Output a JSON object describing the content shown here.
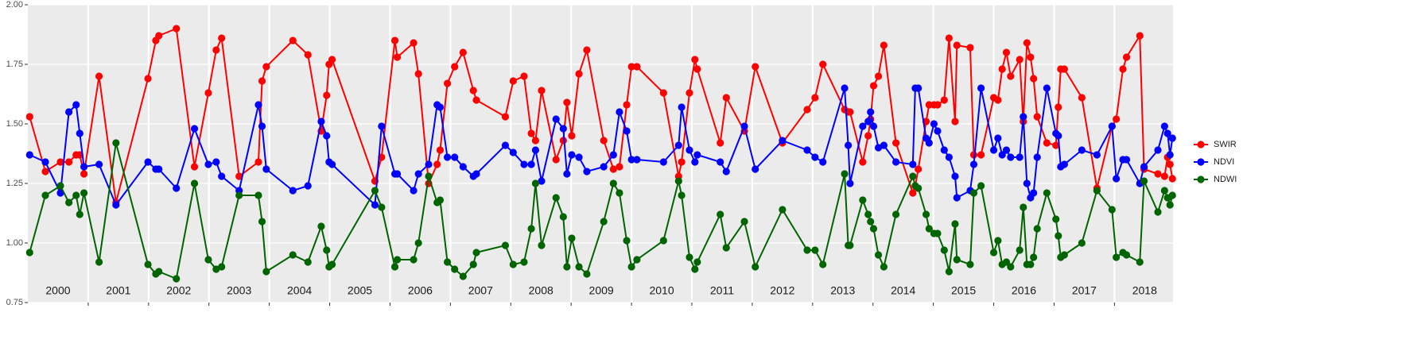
{
  "chart_data": {
    "type": "line",
    "x": [
      2000.03,
      2000.29,
      2000.54,
      2000.68,
      2000.8,
      2000.86,
      2000.93,
      2001.18,
      2001.46,
      2001.99,
      2002.12,
      2002.17,
      2002.46,
      2002.76,
      2002.99,
      2003.12,
      2003.21,
      2003.5,
      2003.82,
      2003.88,
      2003.95,
      2004.39,
      2004.64,
      2004.86,
      2004.95,
      2004.99,
      2005.04,
      2005.75,
      2005.86,
      2006.08,
      2006.12,
      2006.39,
      2006.47,
      2006.64,
      2006.78,
      2006.83,
      2006.95,
      2007.07,
      2007.21,
      2007.38,
      2007.43,
      2007.91,
      2008.04,
      2008.22,
      2008.34,
      2008.41,
      2008.51,
      2008.75,
      2008.87,
      2008.93,
      2009.01,
      2009.13,
      2009.26,
      2009.54,
      2009.7,
      2009.8,
      2009.92,
      2010.0,
      2010.09,
      2010.53,
      2010.78,
      2010.83,
      2010.96,
      2011.05,
      2011.09,
      2011.47,
      2011.57,
      2011.87,
      2012.05,
      2012.5,
      2012.91,
      2013.04,
      2013.17,
      2013.53,
      2013.59,
      2013.62,
      2013.83,
      2013.92,
      2013.96,
      2014.01,
      2014.09,
      2014.18,
      2014.38,
      2014.66,
      2014.7,
      2014.75,
      2014.88,
      2014.93,
      2015.01,
      2015.07,
      2015.18,
      2015.26,
      2015.36,
      2015.39,
      2015.61,
      2015.67,
      2015.79,
      2016.0,
      2016.07,
      2016.14,
      2016.21,
      2016.28,
      2016.43,
      2016.49,
      2016.55,
      2016.61,
      2016.66,
      2016.72,
      2016.88,
      2017.03,
      2017.07,
      2017.11,
      2017.17,
      2017.46,
      2017.71,
      2017.96,
      2018.03,
      2018.14,
      2018.2,
      2018.42,
      2018.49,
      2018.72,
      2018.83,
      2018.88,
      2018.92,
      2018.96
    ],
    "series": [
      {
        "name": "SWIR",
        "color": "#ff0000",
        "values": [
          1.53,
          1.3,
          1.34,
          1.34,
          1.37,
          1.37,
          1.29,
          1.7,
          1.17,
          1.69,
          1.85,
          1.87,
          1.9,
          1.32,
          1.63,
          1.81,
          1.86,
          1.28,
          1.34,
          1.68,
          1.74,
          1.85,
          1.79,
          1.47,
          1.62,
          1.75,
          1.77,
          1.26,
          1.36,
          1.85,
          1.78,
          1.84,
          1.71,
          1.25,
          1.33,
          1.39,
          1.67,
          1.74,
          1.8,
          1.64,
          1.6,
          1.53,
          1.68,
          1.7,
          1.46,
          1.43,
          1.64,
          1.35,
          1.43,
          1.59,
          1.45,
          1.71,
          1.81,
          1.43,
          1.31,
          1.32,
          1.58,
          1.74,
          1.74,
          1.63,
          1.28,
          1.34,
          1.63,
          1.77,
          1.73,
          1.42,
          1.61,
          1.47,
          1.74,
          1.42,
          1.56,
          1.61,
          1.75,
          1.56,
          1.55,
          1.55,
          1.34,
          1.45,
          1.52,
          1.66,
          1.7,
          1.83,
          1.42,
          1.21,
          1.24,
          1.31,
          1.51,
          1.58,
          1.58,
          1.58,
          1.6,
          1.86,
          1.51,
          1.83,
          1.82,
          1.37,
          1.37,
          1.61,
          1.6,
          1.73,
          1.8,
          1.7,
          1.77,
          1.51,
          1.84,
          1.78,
          1.69,
          1.53,
          1.42,
          1.41,
          1.57,
          1.73,
          1.73,
          1.61,
          1.23,
          1.49,
          1.52,
          1.73,
          1.78,
          1.87,
          1.31,
          1.29,
          1.28,
          1.36,
          1.33,
          1.27
        ]
      },
      {
        "name": "NDVI",
        "color": "#0000ff",
        "values": [
          1.37,
          1.34,
          1.21,
          1.55,
          1.58,
          1.46,
          1.32,
          1.33,
          1.16,
          1.34,
          1.31,
          1.31,
          1.23,
          1.48,
          1.33,
          1.34,
          1.28,
          1.22,
          1.58,
          1.49,
          1.31,
          1.22,
          1.24,
          1.51,
          1.45,
          1.34,
          1.33,
          1.16,
          1.49,
          1.29,
          1.29,
          1.22,
          1.29,
          1.33,
          1.58,
          1.57,
          1.36,
          1.36,
          1.32,
          1.28,
          1.29,
          1.41,
          1.38,
          1.33,
          1.33,
          1.39,
          1.26,
          1.52,
          1.48,
          1.29,
          1.37,
          1.36,
          1.3,
          1.32,
          1.37,
          1.55,
          1.47,
          1.35,
          1.35,
          1.34,
          1.41,
          1.57,
          1.39,
          1.34,
          1.37,
          1.34,
          1.3,
          1.49,
          1.31,
          1.43,
          1.39,
          1.36,
          1.34,
          1.65,
          1.41,
          1.25,
          1.49,
          1.51,
          1.55,
          1.49,
          1.4,
          1.41,
          1.34,
          1.33,
          1.65,
          1.65,
          1.44,
          1.42,
          1.5,
          1.47,
          1.39,
          1.36,
          1.28,
          1.19,
          1.22,
          1.33,
          1.65,
          1.39,
          1.44,
          1.37,
          1.39,
          1.36,
          1.36,
          1.53,
          1.25,
          1.19,
          1.21,
          1.36,
          1.65,
          1.46,
          1.45,
          1.32,
          1.33,
          1.39,
          1.37,
          1.49,
          1.27,
          1.35,
          1.35,
          1.25,
          1.32,
          1.39,
          1.49,
          1.46,
          1.37,
          1.44
        ]
      },
      {
        "name": "NDWI",
        "color": "#006400",
        "values": [
          0.96,
          1.2,
          1.24,
          1.17,
          1.2,
          1.12,
          1.21,
          0.92,
          1.42,
          0.91,
          0.87,
          0.88,
          0.85,
          1.25,
          0.93,
          0.89,
          0.9,
          1.2,
          1.2,
          1.09,
          0.88,
          0.95,
          0.92,
          1.07,
          0.97,
          0.9,
          0.91,
          1.22,
          1.15,
          0.9,
          0.93,
          0.93,
          1.0,
          1.28,
          1.17,
          1.18,
          0.92,
          0.89,
          0.86,
          0.91,
          0.96,
          0.99,
          0.91,
          0.92,
          1.06,
          1.25,
          0.99,
          1.19,
          1.11,
          0.9,
          1.02,
          0.9,
          0.87,
          1.09,
          1.25,
          1.21,
          1.01,
          0.9,
          0.93,
          1.01,
          1.26,
          1.2,
          0.94,
          0.89,
          0.92,
          1.12,
          0.98,
          1.09,
          0.9,
          1.14,
          0.97,
          0.97,
          0.91,
          1.29,
          0.99,
          0.99,
          1.18,
          1.12,
          1.09,
          1.06,
          0.95,
          0.9,
          1.12,
          1.28,
          1.24,
          1.23,
          1.12,
          1.06,
          1.04,
          1.04,
          0.97,
          0.88,
          1.08,
          0.93,
          0.91,
          1.21,
          1.24,
          0.96,
          1.01,
          0.91,
          0.92,
          0.9,
          0.97,
          1.15,
          0.91,
          0.91,
          0.94,
          1.06,
          1.21,
          1.1,
          1.03,
          0.94,
          0.95,
          1.0,
          1.22,
          1.14,
          0.94,
          0.96,
          0.95,
          0.92,
          1.26,
          1.13,
          1.22,
          1.19,
          1.16,
          1.2
        ]
      }
    ],
    "xlim": [
      2000,
      2018.97
    ],
    "xticks": [
      2001,
      2002,
      2003,
      2004,
      2005,
      2006,
      2007,
      2008,
      2009,
      2010,
      2011,
      2012,
      2013,
      2014,
      2015,
      2016,
      2017,
      2018
    ],
    "year_labels": [
      2000,
      2001,
      2002,
      2003,
      2004,
      2005,
      2006,
      2007,
      2008,
      2009,
      2010,
      2011,
      2012,
      2013,
      2014,
      2015,
      2016,
      2017,
      2018
    ],
    "ylim": [
      0.75,
      2.0
    ],
    "yticks": [
      {
        "value": 0.75,
        "label": "0.75"
      },
      {
        "value": 1.0,
        "label": "1.00"
      },
      {
        "value": 1.25,
        "label": "1.25"
      },
      {
        "value": 1.5,
        "label": "1.50"
      },
      {
        "value": 1.75,
        "label": "1.75"
      },
      {
        "value": 2.0,
        "label": "2.00"
      }
    ],
    "grid": true,
    "legend": "right"
  }
}
